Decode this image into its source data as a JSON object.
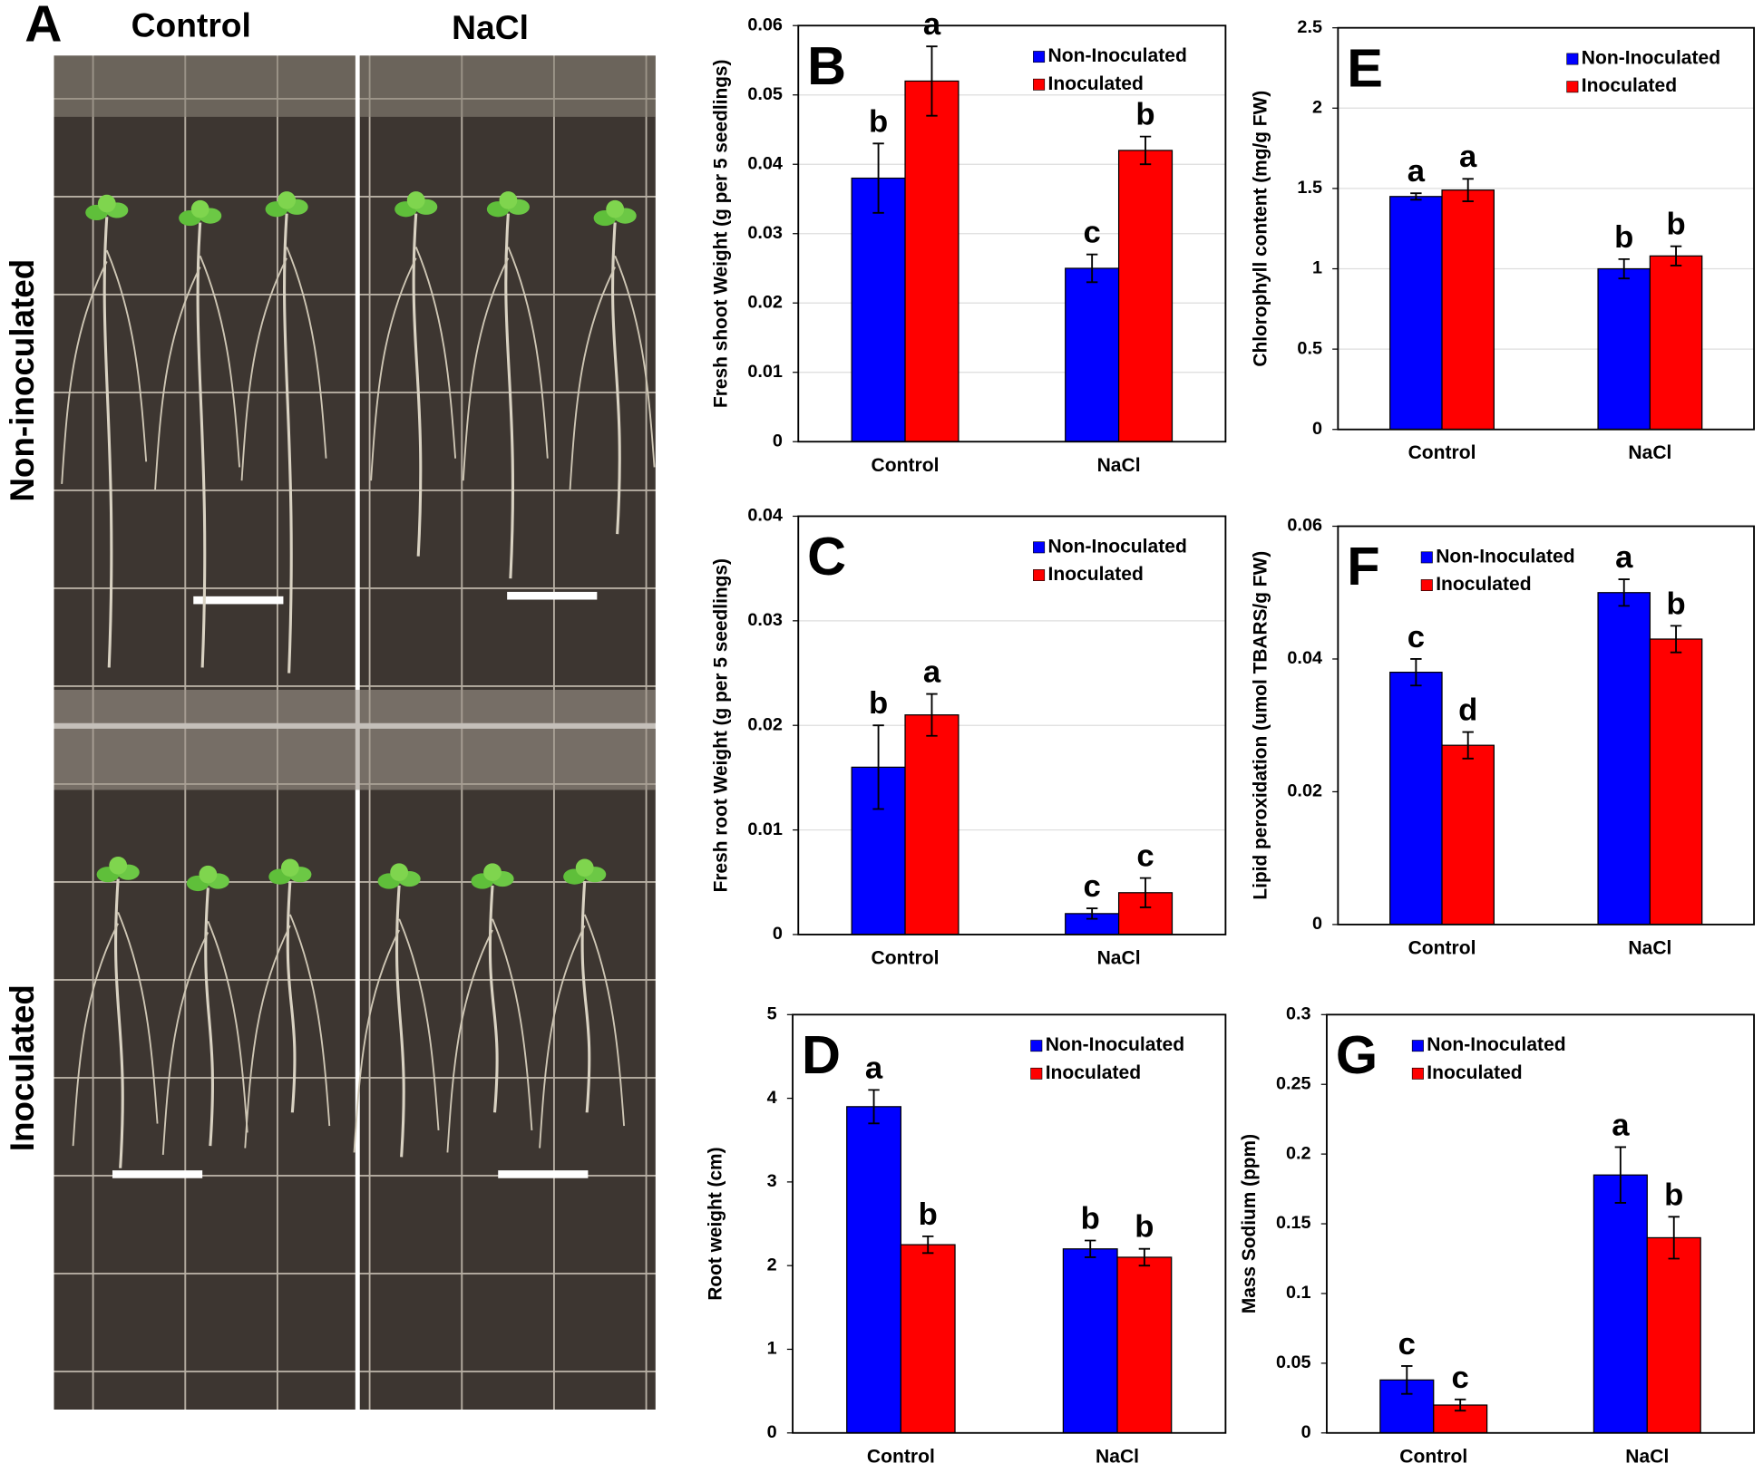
{
  "panel_a": {
    "letter": "A",
    "columns": [
      "Control",
      "NaCl"
    ],
    "rows": [
      "Non-inoculated",
      "Inoculated"
    ]
  },
  "chart_data": [
    {
      "type": "bar",
      "panel": "B",
      "ylabel": "Fresh shoot Weight (g per 5 seedlings)",
      "categories": [
        "Control",
        "NaCl"
      ],
      "series": [
        {
          "name": "Non-Inoculated",
          "color": "#0000ff",
          "values": [
            0.038,
            0.025
          ],
          "errors": [
            0.005,
            0.002
          ],
          "letters": [
            "b",
            "c"
          ]
        },
        {
          "name": "Inoculated",
          "color": "#ff0000",
          "values": [
            0.052,
            0.042
          ],
          "errors": [
            0.005,
            0.002
          ],
          "letters": [
            "a",
            "b"
          ]
        }
      ],
      "ylim": [
        0,
        0.06
      ],
      "yticks": [
        0,
        0.01,
        0.02,
        0.03,
        0.04,
        0.05,
        0.06
      ],
      "grid": true,
      "legend": "upper right"
    },
    {
      "type": "bar",
      "panel": "C",
      "ylabel": "Fresh root Weight (g per 5 seedlings)",
      "categories": [
        "Control",
        "NaCl"
      ],
      "series": [
        {
          "name": "Non-Inoculated",
          "color": "#0000ff",
          "values": [
            0.016,
            0.002
          ],
          "errors": [
            0.004,
            0.0005
          ],
          "letters": [
            "b",
            "c"
          ]
        },
        {
          "name": "Inoculated",
          "color": "#ff0000",
          "values": [
            0.021,
            0.004
          ],
          "errors": [
            0.002,
            0.0014
          ],
          "letters": [
            "a",
            "c"
          ]
        }
      ],
      "ylim": [
        0,
        0.04
      ],
      "yticks": [
        0,
        0.01,
        0.02,
        0.03,
        0.04
      ],
      "grid": true,
      "legend": "upper right"
    },
    {
      "type": "bar",
      "panel": "D",
      "ylabel": "Root weight (cm)",
      "categories": [
        "Control",
        "NaCl"
      ],
      "series": [
        {
          "name": "Non-Inoculated",
          "color": "#0000ff",
          "values": [
            3.9,
            2.2
          ],
          "errors": [
            0.2,
            0.1
          ],
          "letters": [
            "a",
            "b"
          ]
        },
        {
          "name": "Inoculated",
          "color": "#ff0000",
          "values": [
            2.25,
            2.1
          ],
          "errors": [
            0.1,
            0.1
          ],
          "letters": [
            "b",
            "b"
          ]
        }
      ],
      "ylim": [
        0,
        5
      ],
      "yticks": [
        0,
        1,
        2,
        3,
        4,
        5
      ],
      "grid": false,
      "legend": "upper right"
    },
    {
      "type": "bar",
      "panel": "E",
      "ylabel": "Chlorophyll content (mg/g FW)",
      "categories": [
        "Control",
        "NaCl"
      ],
      "series": [
        {
          "name": "Non-Inoculated",
          "color": "#0000ff",
          "values": [
            1.45,
            1.0
          ],
          "errors": [
            0.02,
            0.06
          ],
          "letters": [
            "a",
            "b"
          ]
        },
        {
          "name": "Inoculated",
          "color": "#ff0000",
          "values": [
            1.49,
            1.08
          ],
          "errors": [
            0.07,
            0.06
          ],
          "letters": [
            "a",
            "b"
          ]
        }
      ],
      "ylim": [
        0,
        2.5
      ],
      "yticks": [
        0,
        0.5,
        1,
        1.5,
        2,
        2.5
      ],
      "grid": true,
      "legend": "upper right"
    },
    {
      "type": "bar",
      "panel": "F",
      "ylabel": "Lipid peroxidation (umol TBARS/g FW)",
      "categories": [
        "Control",
        "NaCl"
      ],
      "series": [
        {
          "name": "Non-Inoculated",
          "color": "#0000ff",
          "values": [
            0.038,
            0.05
          ],
          "errors": [
            0.002,
            0.002
          ],
          "letters": [
            "c",
            "a"
          ]
        },
        {
          "name": "Inoculated",
          "color": "#ff0000",
          "values": [
            0.027,
            0.043
          ],
          "errors": [
            0.002,
            0.002
          ],
          "letters": [
            "d",
            "b"
          ]
        }
      ],
      "ylim": [
        0,
        0.06
      ],
      "yticks": [
        0,
        0.02,
        0.04,
        0.06
      ],
      "grid": false,
      "legend": "upper left"
    },
    {
      "type": "bar",
      "panel": "G",
      "ylabel": "Mass Sodium (ppm)",
      "categories": [
        "Control",
        "NaCl"
      ],
      "series": [
        {
          "name": "Non-Inoculated",
          "color": "#0000ff",
          "values": [
            0.038,
            0.185
          ],
          "errors": [
            0.01,
            0.02
          ],
          "letters": [
            "c",
            "a"
          ]
        },
        {
          "name": "Inoculated",
          "color": "#ff0000",
          "values": [
            0.02,
            0.14
          ],
          "errors": [
            0.004,
            0.015
          ],
          "letters": [
            "c",
            "b"
          ]
        }
      ],
      "ylim": [
        0,
        0.3
      ],
      "yticks": [
        0,
        0.05,
        0.1,
        0.15,
        0.2,
        0.25,
        0.3
      ],
      "grid": false,
      "legend": "upper left"
    }
  ]
}
